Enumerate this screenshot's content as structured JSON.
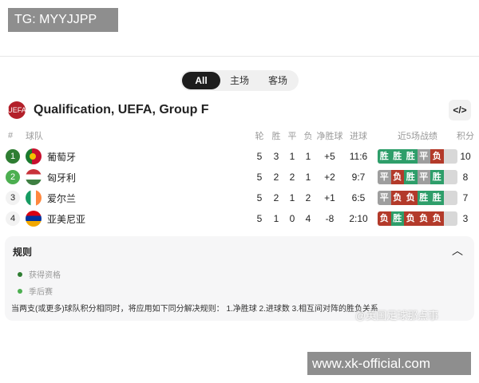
{
  "overlay": {
    "top_label": "TG: MYYJJPP",
    "bottom_label": "www.xk-official.com",
    "watermark": "@英国足球那点事"
  },
  "tabs": [
    {
      "label": "All",
      "active": true
    },
    {
      "label": "主场"
    },
    {
      "label": "客场"
    }
  ],
  "header": {
    "logo_text": "UEFA",
    "title": "Qualification, UEFA, Group F",
    "embed_icon": "</>"
  },
  "columns": {
    "rank": "#",
    "team": "球队",
    "played": "轮",
    "won": "胜",
    "drawn": "平",
    "lost": "负",
    "gd": "净胜球",
    "goals": "进球",
    "form": "近5场战绩",
    "points": "积分"
  },
  "colors": {
    "win": "#2e9e6a",
    "draw": "#9e9e9e",
    "loss": "#b33a2a",
    "qualified": "#2e7d32",
    "playoff": "#4caf50"
  },
  "rows": [
    {
      "rank": "1",
      "team": "葡萄牙",
      "played": "5",
      "won": "3",
      "drawn": "1",
      "lost": "1",
      "gd": "+5",
      "goals": "11:6",
      "form": [
        "胜",
        "胜",
        "胜",
        "平",
        "负"
      ],
      "points": "10",
      "status": "qualified"
    },
    {
      "rank": "2",
      "team": "匈牙利",
      "played": "5",
      "won": "2",
      "drawn": "2",
      "lost": "1",
      "gd": "+2",
      "goals": "9:7",
      "form": [
        "平",
        "负",
        "胜",
        "平",
        "胜"
      ],
      "points": "8",
      "status": "playoff"
    },
    {
      "rank": "3",
      "team": "爱尔兰",
      "played": "5",
      "won": "2",
      "drawn": "1",
      "lost": "2",
      "gd": "+1",
      "goals": "6:5",
      "form": [
        "平",
        "负",
        "负",
        "胜",
        "胜"
      ],
      "points": "7"
    },
    {
      "rank": "4",
      "team": "亚美尼亚",
      "played": "5",
      "won": "1",
      "drawn": "0",
      "lost": "4",
      "gd": "-8",
      "goals": "2:10",
      "form": [
        "负",
        "胜",
        "负",
        "负",
        "负"
      ],
      "points": "3"
    }
  ],
  "rules": {
    "title": "规则",
    "legend": [
      "获得资格",
      "季后赛"
    ],
    "note": "当两支(或更多)球队积分相同时，将应用如下同分解决规则： 1.净胜球 2.进球数 3.相互间对阵的胜负关系"
  }
}
